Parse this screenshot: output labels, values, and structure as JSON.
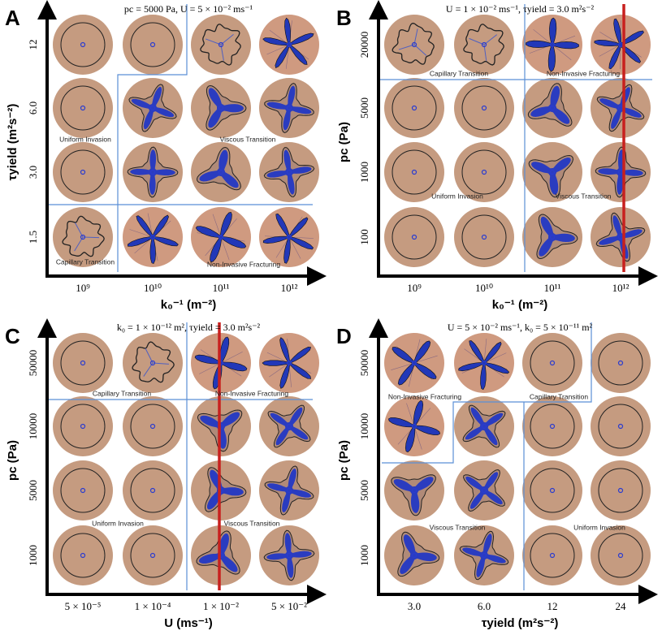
{
  "panels": [
    {
      "letter": "A",
      "title": "pc = 5000 Pa, U = 5 × 10⁻² ms⁻¹",
      "x_label": "k₀⁻¹ (m⁻²)",
      "y_label": "τyield (m²s⁻²)",
      "x_ticks": [
        "10⁹",
        "10¹⁰",
        "10¹¹",
        "10¹²"
      ],
      "y_ticks": [
        "12",
        "6.0",
        "3.0",
        "1.5"
      ],
      "regions": [
        "Uniform Invasion",
        "Viscous Transition",
        "Capillary Transition",
        "Non-Invasive Fracturing"
      ]
    },
    {
      "letter": "B",
      "title": "U = 1 × 10⁻² ms⁻¹, τyield = 3.0 m²s⁻²",
      "x_label": "k₀⁻¹ (m⁻²)",
      "y_label": "pc (Pa)",
      "x_ticks": [
        "10⁹",
        "10¹⁰",
        "10¹¹",
        "10¹²"
      ],
      "y_ticks": [
        "20000",
        "5000",
        "1000",
        "100"
      ],
      "regions": [
        "Capillary Transition",
        "Non-Invasive Fracturing",
        "Uniform Invasion",
        "Viscous Transition"
      ]
    },
    {
      "letter": "C",
      "title": "k₀ = 1 × 10⁻¹² m², τyield = 3.0 m²s⁻²",
      "x_label": "U (ms⁻¹)",
      "y_label": "pc (Pa)",
      "x_ticks": [
        "5 × 10⁻⁵",
        "1 × 10⁻⁴",
        "1 × 10⁻²",
        "5 × 10⁻²"
      ],
      "y_ticks": [
        "50000",
        "10000",
        "5000",
        "1000"
      ],
      "regions": [
        "Capillary Transition",
        "Non-Invasive Fracturing",
        "Uniform Invasion",
        "Viscous Transition"
      ]
    },
    {
      "letter": "D",
      "title": "U = 5 × 10⁻² ms⁻¹, k₀ = 5 × 10⁻¹¹ m²",
      "x_label": "τyield (m²s⁻²)",
      "y_label": "pc (Pa)",
      "x_ticks": [
        "3.0",
        "6.0",
        "12",
        "24"
      ],
      "y_ticks": [
        "50000",
        "10000",
        "5000",
        "1000"
      ],
      "regions": [
        "Non-Invasive Fracturing",
        "Capillary Transition",
        "Viscous Transition",
        "Uniform Invasion"
      ]
    }
  ]
}
